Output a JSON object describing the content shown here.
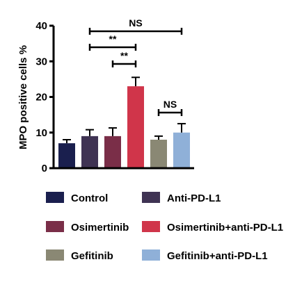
{
  "chart_data": {
    "type": "bar",
    "ylabel": "MPO positive cells %",
    "ylim": [
      0,
      40
    ],
    "yticks": [
      0,
      10,
      20,
      30,
      40
    ],
    "categories": [
      "Control",
      "Anti-PD-L1",
      "Osimertinib",
      "Osimertinib+anti-PD-L1",
      "Gefitinib",
      "Gefitinib+anti-PD-L1"
    ],
    "values": [
      7,
      9,
      9,
      23,
      8,
      10
    ],
    "errors": [
      1,
      1.8,
      2.3,
      2.5,
      1,
      2.5
    ],
    "colors": [
      "#1a1f4e",
      "#3f3353",
      "#7a2e48",
      "#d0354a",
      "#8a8874",
      "#8fb0d8"
    ],
    "legend": {
      "placement": "bottom",
      "entries": [
        "Control",
        "Anti-PD-L1",
        "Osimertinib",
        "Osimertinib+anti-PD-L1",
        "Gefitinib",
        "Gefitinib+anti-PD-L1"
      ]
    },
    "annotations": [
      {
        "from": 1,
        "to": 5,
        "label": "NS"
      },
      {
        "from": 1,
        "to": 3,
        "label": "**"
      },
      {
        "from": 2,
        "to": 3,
        "label": "**"
      },
      {
        "from": 4,
        "to": 5,
        "label": "NS"
      }
    ]
  },
  "watermark": {
    "line1": "",
    "line2": ""
  }
}
